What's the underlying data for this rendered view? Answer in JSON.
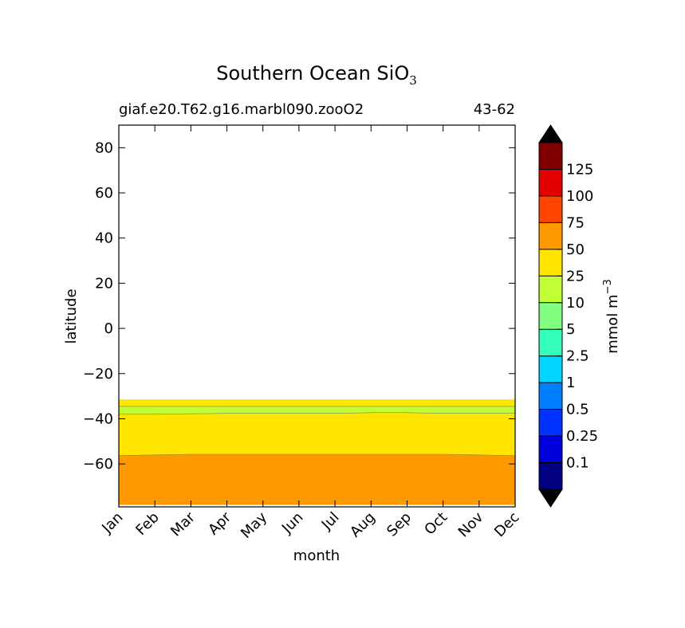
{
  "chart_data": {
    "type": "contourf",
    "title_main": "Southern Ocean SiO",
    "title_subscript": "3",
    "subtitle_left": "giaf.e20.T62.g16.marbl090.zooO2",
    "subtitle_right": "43-62",
    "xlabel": "month",
    "ylabel": "latitude",
    "months": [
      "Jan",
      "Feb",
      "Mar",
      "Apr",
      "May",
      "Jun",
      "Jul",
      "Aug",
      "Sep",
      "Oct",
      "Nov",
      "Dec"
    ],
    "xlim": [
      0,
      11
    ],
    "ylim": [
      -79,
      90
    ],
    "yticks": [
      80,
      60,
      40,
      20,
      0,
      -20,
      -40,
      -60
    ],
    "ytick_labels": [
      "80",
      "60",
      "40",
      "20",
      "0",
      "−20",
      "−40",
      "−60"
    ],
    "data_lat_range": [
      -78,
      -31
    ],
    "bands": [
      {
        "level_range": "50-75",
        "color": "#ff9900",
        "lower": [
          -78,
          -78,
          -78,
          -78,
          -78,
          -78,
          -78,
          -78,
          -78,
          -78,
          -78,
          -78
        ],
        "upper": [
          -56.3,
          -56.0,
          -55.7,
          -55.7,
          -55.7,
          -55.7,
          -55.7,
          -55.7,
          -55.7,
          -55.7,
          -56.0,
          -56.3
        ]
      },
      {
        "level_range": "25-50",
        "color": "#ffe500",
        "lower": [
          -56.3,
          -56.0,
          -55.7,
          -55.7,
          -55.7,
          -55.7,
          -55.7,
          -55.7,
          -55.7,
          -55.7,
          -56.0,
          -56.3
        ],
        "upper": [
          -38.0,
          -38.0,
          -37.8,
          -37.6,
          -37.6,
          -37.6,
          -37.6,
          -37.3,
          -37.3,
          -37.6,
          -37.6,
          -37.6
        ]
      },
      {
        "level_range": "10-25",
        "color": "#bfff33",
        "lower": [
          -38.0,
          -38.0,
          -37.8,
          -37.6,
          -37.6,
          -37.6,
          -37.6,
          -37.3,
          -37.3,
          -37.6,
          -37.6,
          -37.6
        ],
        "upper": [
          -34.5,
          -34.5,
          -34.5,
          -34.5,
          -34.5,
          -34.5,
          -34.5,
          -34.5,
          -34.5,
          -34.5,
          -34.5,
          -34.5
        ]
      },
      {
        "level_range": "25-50",
        "color": "#ffe500",
        "lower": [
          -34.5,
          -34.5,
          -34.5,
          -34.5,
          -34.5,
          -34.5,
          -34.5,
          -34.5,
          -34.5,
          -34.5,
          -34.5,
          -34.5
        ],
        "upper": [
          -31.5,
          -31.5,
          -31.5,
          -31.5,
          -31.5,
          -31.5,
          -31.5,
          -31.5,
          -31.5,
          -31.5,
          -31.5,
          -31.5
        ]
      }
    ],
    "colorbar": {
      "label": "mmol m",
      "label_superscript": "−3",
      "levels": [
        "0.1",
        "0.25",
        "0.5",
        "1",
        "2.5",
        "5",
        "10",
        "25",
        "50",
        "75",
        "100",
        "125"
      ],
      "colors": [
        "#000080",
        "#0000dd",
        "#0033ff",
        "#0080ff",
        "#00d4ff",
        "#33ffbb",
        "#80ff80",
        "#bfff33",
        "#ffe500",
        "#ff9900",
        "#ff4400",
        "#e50000",
        "#800000"
      ],
      "under_color": "#000000",
      "over_color": "#000000"
    }
  }
}
